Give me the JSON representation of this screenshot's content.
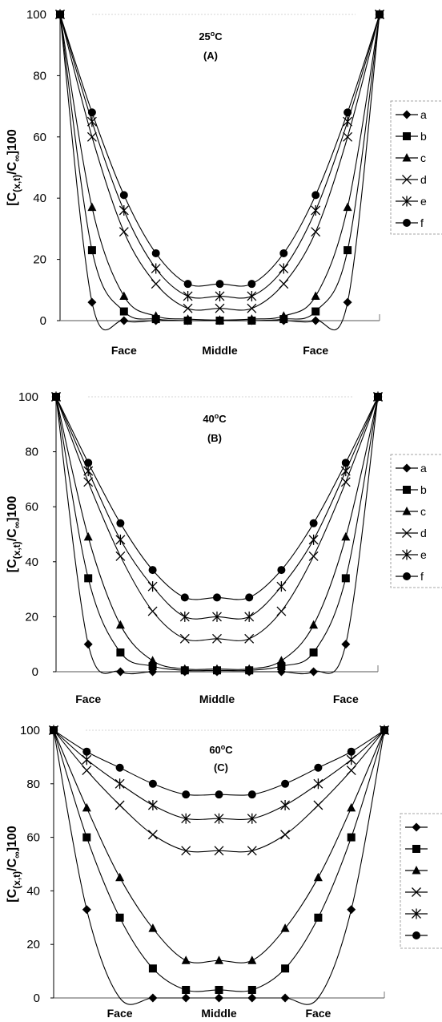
{
  "chart_data": [
    {
      "type": "line",
      "title": "25°C",
      "subtitle": "(A)",
      "ylabel": "[C(x,t)/C∞]100",
      "ylim": [
        0,
        100
      ],
      "yticks": [
        0,
        20,
        40,
        60,
        80,
        100
      ],
      "x": [
        0,
        1,
        2,
        3,
        4,
        5,
        6,
        7,
        8,
        9,
        10
      ],
      "x_tick_labels": [
        {
          "x": 2,
          "label": "Face"
        },
        {
          "x": 5,
          "label": "Middle"
        },
        {
          "x": 8,
          "label": "Face"
        }
      ],
      "legend": "right",
      "series": [
        {
          "name": "a",
          "marker": "diamond",
          "values": [
            100,
            6,
            0,
            0,
            0,
            0,
            0,
            0,
            0,
            6,
            100
          ]
        },
        {
          "name": "b",
          "marker": "square",
          "values": [
            100,
            23,
            3,
            0.5,
            0,
            0,
            0,
            0.5,
            3,
            23,
            100
          ]
        },
        {
          "name": "c",
          "marker": "triangle",
          "values": [
            100,
            37,
            8,
            1.5,
            0.5,
            0.2,
            0.5,
            1.5,
            8,
            37,
            100
          ]
        },
        {
          "name": "d",
          "marker": "x",
          "values": [
            100,
            60,
            29,
            12,
            4,
            4,
            4,
            12,
            29,
            60,
            100
          ]
        },
        {
          "name": "e",
          "marker": "star",
          "values": [
            100,
            65,
            36,
            17,
            8,
            8,
            8,
            17,
            36,
            65,
            100
          ]
        },
        {
          "name": "f",
          "marker": "circle",
          "values": [
            100,
            68,
            41,
            22,
            12,
            12,
            12,
            22,
            41,
            68,
            100
          ]
        }
      ]
    },
    {
      "type": "line",
      "title": "40°C",
      "subtitle": "(B)",
      "ylabel": "[C(x,t)/C∞]100",
      "ylim": [
        0,
        100
      ],
      "yticks": [
        0,
        20,
        40,
        60,
        80,
        100
      ],
      "x": [
        0,
        1,
        2,
        3,
        4,
        5,
        6,
        7,
        8,
        9,
        10
      ],
      "x_tick_labels": [
        {
          "x": 1,
          "label": "Face"
        },
        {
          "x": 5,
          "label": "Middle"
        },
        {
          "x": 9,
          "label": "Face"
        }
      ],
      "legend": "right",
      "series": [
        {
          "name": "a",
          "marker": "diamond",
          "values": [
            100,
            10,
            0,
            0,
            0,
            0,
            0,
            0,
            0,
            10,
            100
          ]
        },
        {
          "name": "b",
          "marker": "square",
          "values": [
            100,
            34,
            7,
            2,
            0.5,
            0.5,
            0.5,
            2,
            7,
            34,
            100
          ]
        },
        {
          "name": "c",
          "marker": "triangle",
          "values": [
            100,
            49,
            17,
            4,
            1,
            1,
            1,
            4,
            17,
            49,
            100
          ]
        },
        {
          "name": "d",
          "marker": "x",
          "values": [
            100,
            69,
            42,
            22,
            12,
            12,
            12,
            22,
            42,
            69,
            100
          ]
        },
        {
          "name": "e",
          "marker": "star",
          "values": [
            100,
            73,
            48,
            31,
            20,
            20,
            20,
            31,
            48,
            73,
            100
          ]
        },
        {
          "name": "f",
          "marker": "circle",
          "values": [
            100,
            76,
            54,
            37,
            27,
            27,
            27,
            37,
            54,
            76,
            100
          ]
        }
      ]
    },
    {
      "type": "line",
      "title": "60°C",
      "subtitle": "(C)",
      "ylabel": "[C(x,t)/C∞]100",
      "ylim": [
        0,
        100
      ],
      "yticks": [
        0,
        20,
        40,
        60,
        80,
        100
      ],
      "x": [
        0,
        1,
        2,
        3,
        4,
        5,
        6,
        7,
        8,
        9,
        10
      ],
      "x_tick_labels": [
        {
          "x": 2,
          "label": "Face"
        },
        {
          "x": 5,
          "label": "Middle"
        },
        {
          "x": 8,
          "label": "Face"
        }
      ],
      "legend": "right",
      "series": [
        {
          "name": "",
          "marker": "diamond",
          "values": [
            100,
            33,
            0,
            0,
            0,
            0,
            0,
            0,
            0,
            33,
            100
          ]
        },
        {
          "name": "",
          "marker": "square",
          "values": [
            100,
            60,
            30,
            11,
            3,
            3,
            3,
            11,
            30,
            60,
            100
          ]
        },
        {
          "name": "",
          "marker": "triangle",
          "values": [
            100,
            71,
            45,
            26,
            14,
            14,
            14,
            26,
            45,
            71,
            100
          ]
        },
        {
          "name": "",
          "marker": "x",
          "values": [
            100,
            85,
            72,
            61,
            55,
            55,
            55,
            61,
            72,
            85,
            100
          ]
        },
        {
          "name": "",
          "marker": "star",
          "values": [
            100,
            89,
            80,
            72,
            67,
            67,
            67,
            72,
            80,
            89,
            100
          ]
        },
        {
          "name": "",
          "marker": "circle",
          "values": [
            100,
            92,
            86,
            80,
            76,
            76,
            76,
            80,
            86,
            92,
            100
          ]
        }
      ]
    }
  ]
}
